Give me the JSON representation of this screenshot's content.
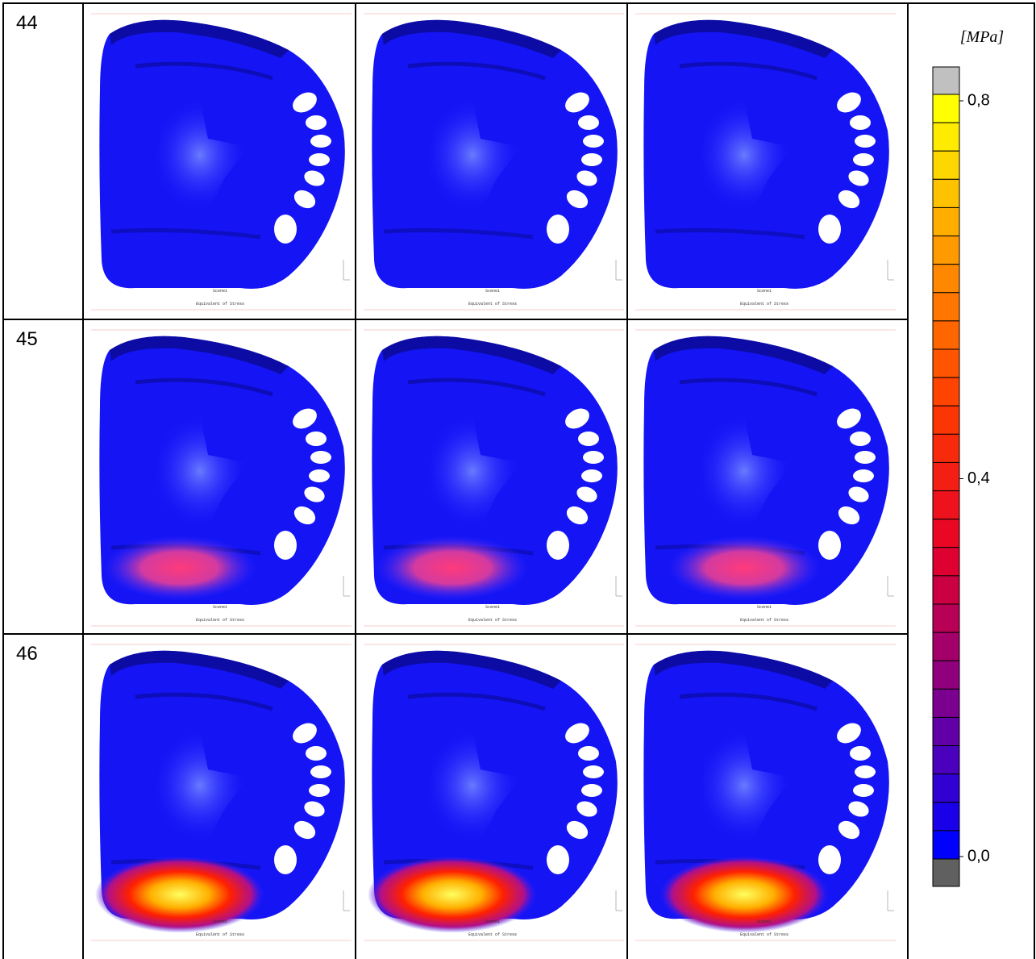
{
  "table": {
    "rows": [
      {
        "label": "44"
      },
      {
        "label": "45"
      },
      {
        "label": "46"
      }
    ]
  },
  "panel": {
    "scene": "Scene1",
    "caption": "Equivalent of Stress"
  },
  "legend": {
    "unit": "[MPa]",
    "lim": [
      0,
      0.8
    ],
    "ticks": [
      {
        "value": 0.8,
        "label": "0,8"
      },
      {
        "value": 0.4,
        "label": "0,4"
      },
      {
        "value": 0,
        "label": "0,0"
      }
    ]
  }
}
